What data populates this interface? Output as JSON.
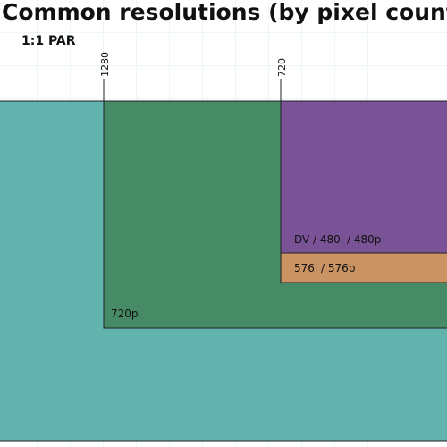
{
  "title": "Common resolutions (by pixel count)",
  "subtitle": "1:1 PAR",
  "markers": [
    {
      "label": "1280"
    },
    {
      "label": "720"
    }
  ],
  "regions": [
    {
      "label": "720p"
    },
    {
      "label": "DV / 480i / 480p"
    },
    {
      "label": "576i / 576p"
    }
  ]
}
